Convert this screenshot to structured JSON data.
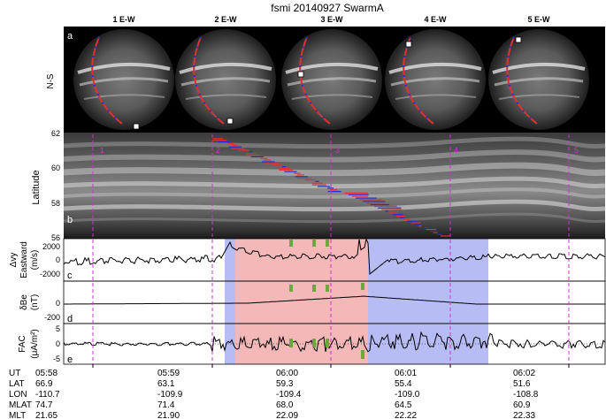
{
  "title": "fsmi  20140927  SwarmA",
  "panel_a": {
    "label": "a",
    "ylabel": "N-S",
    "frames": [
      "1 E-W",
      "2 E-W",
      "3 E-W",
      "4 E-W",
      "5 E-W"
    ]
  },
  "panel_b": {
    "label": "b",
    "ylabel": "Latitude",
    "ylim": [
      56,
      62
    ],
    "yticks": [
      "62",
      "60",
      "58",
      "56"
    ],
    "markers": [
      "1",
      "2",
      "3",
      "4",
      "5"
    ]
  },
  "panel_c": {
    "label": "c",
    "ylabel": [
      "Δvy",
      "Eastward",
      "(m/s)"
    ],
    "yticks": [
      "2000",
      "0",
      "-2000"
    ]
  },
  "panel_d": {
    "label": "d",
    "ylabel": [
      "δBe",
      "(nT)"
    ],
    "yticks": [
      "0",
      "-200"
    ]
  },
  "panel_e": {
    "label": "e",
    "ylabel": [
      "FAC",
      "(μA/m²)"
    ],
    "yticks": [
      "5",
      "0",
      "-5"
    ]
  },
  "table": {
    "row_labels": [
      "UT",
      "LAT",
      "LON",
      "MLAT",
      "MLT"
    ],
    "columns": [
      {
        "UT": "05:58",
        "LAT": "66.9",
        "LON": "-110.7",
        "MLAT": "74.7",
        "MLT": "21.65"
      },
      {
        "UT": "05:59",
        "LAT": "63.1",
        "LON": "-109.9",
        "MLAT": "71.4",
        "MLT": "21.90"
      },
      {
        "UT": "06:00",
        "LAT": "59.3",
        "LON": "-109.4",
        "MLAT": "68.0",
        "MLT": "22.09"
      },
      {
        "UT": "06:01",
        "LAT": "55.4",
        "LON": "-109.0",
        "MLAT": "64.5",
        "MLT": "22.22"
      },
      {
        "UT": "06:02",
        "LAT": "51.6",
        "LON": "-108.8",
        "MLAT": "60.9",
        "MLT": "22.33"
      }
    ]
  },
  "colors": {
    "pink_region": "#f4b8b8",
    "blue_region": "#b8bcf4",
    "marker_line": "#cc33cc",
    "green_bar": "#6aaa3a",
    "track_red": "#e03030",
    "track_blue": "#2030d0"
  }
}
